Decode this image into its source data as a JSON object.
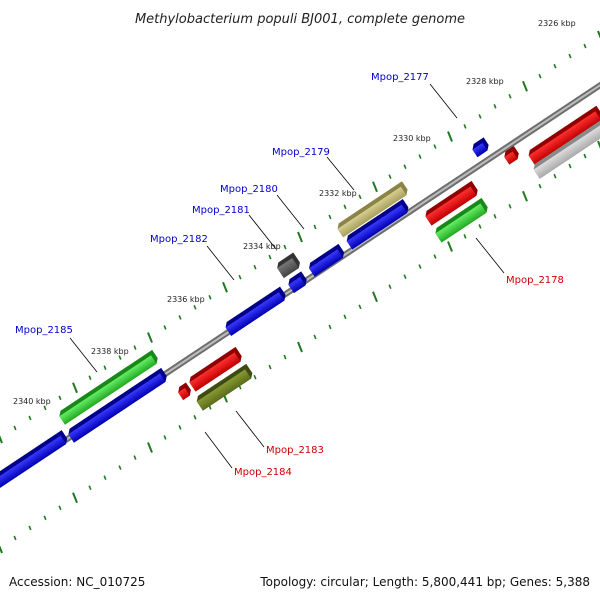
{
  "title": "Methylobacterium populi BJ001, complete genome",
  "accession": "Accession: NC_010725",
  "topology": "Topology: circular; Length: 5,800,441 bp; Genes: 5,388",
  "colors": {
    "backbone": "#8a8a8a",
    "tick": "#1e7a1e",
    "label_forward": "#0000cc",
    "label_reverse": "#cc0000",
    "leader": "#000000"
  },
  "ticks": [
    {
      "label": "2326 kbp"
    },
    {
      "label": "2328 kbp"
    },
    {
      "label": "2330 kbp"
    },
    {
      "label": "2332 kbp"
    },
    {
      "label": "2334 kbp"
    },
    {
      "label": "2336 kbp"
    },
    {
      "label": "2338 kbp"
    },
    {
      "label": "2340 kbp"
    }
  ],
  "genes": [
    {
      "name": "Mpop_2177",
      "strand": "forward"
    },
    {
      "name": "Mpop_2178",
      "strand": "reverse"
    },
    {
      "name": "Mpop_2179",
      "strand": "forward"
    },
    {
      "name": "Mpop_2180",
      "strand": "forward"
    },
    {
      "name": "Mpop_2181",
      "strand": "forward"
    },
    {
      "name": "Mpop_2182",
      "strand": "forward"
    },
    {
      "name": "Mpop_2183",
      "strand": "reverse"
    },
    {
      "name": "Mpop_2184",
      "strand": "reverse"
    },
    {
      "name": "Mpop_2185",
      "strand": "forward"
    }
  ]
}
